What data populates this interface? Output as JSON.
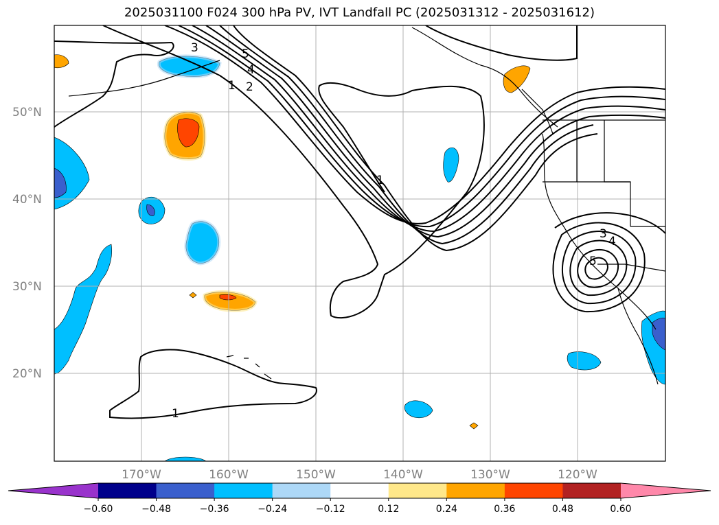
{
  "title": "2025031100 F024 300 hPa PV, IVT Landfall PC (2025031312 - 2025031612)",
  "lat_labels": [
    "50°N",
    "40°N",
    "30°N",
    "20°N"
  ],
  "lon_labels": [
    "170°W",
    "160°W",
    "150°W",
    "140°W",
    "130°W",
    "120°W"
  ],
  "contour_labels": [
    "3",
    "4",
    "1",
    "2",
    "5",
    "1",
    "3",
    "4",
    "5",
    "1"
  ],
  "colorbar": {
    "ticks": [
      "−0.60",
      "−0.48",
      "−0.36",
      "−0.24",
      "−0.12",
      "0.12",
      "0.24",
      "0.36",
      "0.48",
      "0.60"
    ],
    "colors": [
      "#9933cc",
      "#00008b",
      "#3a5fcd",
      "#00bfff",
      "#add8f7",
      "#ffffff",
      "#ffe88a",
      "#ffa500",
      "#ff4500",
      "#b22222",
      "#ff88aa"
    ]
  }
}
